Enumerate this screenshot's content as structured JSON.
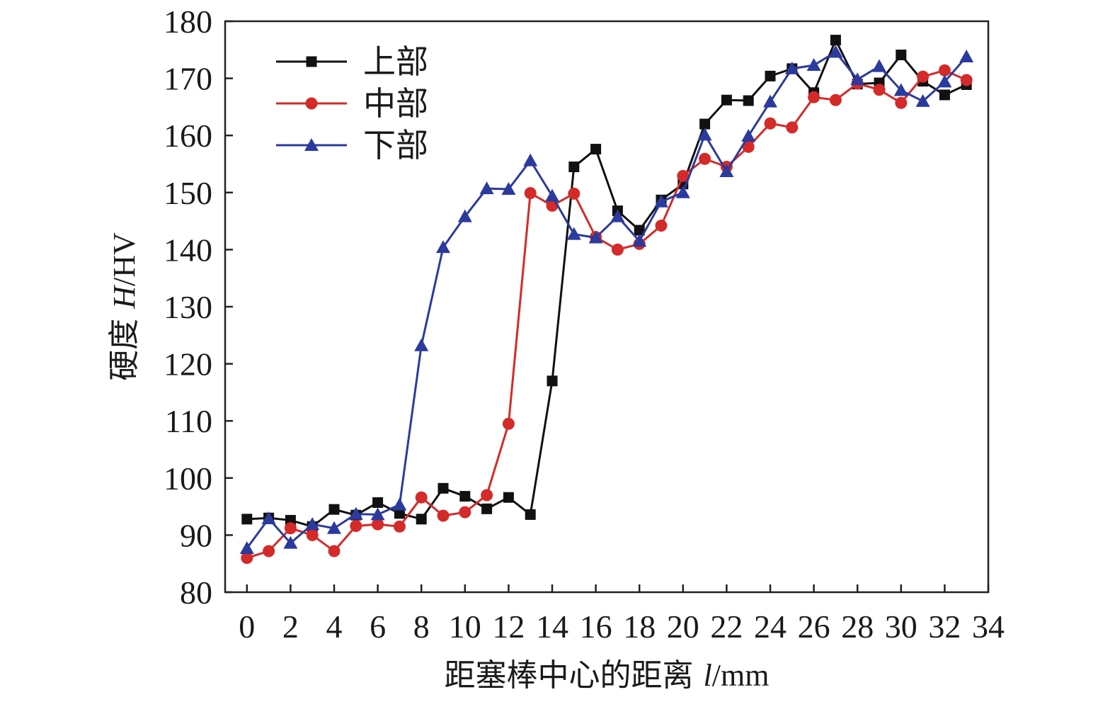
{
  "chart_data": {
    "type": "line",
    "title": "",
    "xlabel": {
      "prefix": "距塞棒中心的距离 ",
      "var": "l",
      "unit": "/mm"
    },
    "ylabel": {
      "prefix": "硬度 ",
      "var": "H",
      "unit": "/HV"
    },
    "xlim": [
      -1,
      34
    ],
    "ylim": [
      80,
      180
    ],
    "xticks": [
      "0",
      "2",
      "4",
      "6",
      "8",
      "10",
      "12",
      "14",
      "16",
      "18",
      "20",
      "22",
      "24",
      "26",
      "28",
      "30",
      "32",
      "34"
    ],
    "yticks": [
      "80",
      "90",
      "100",
      "110",
      "120",
      "130",
      "140",
      "150",
      "160",
      "170",
      "180"
    ],
    "x": [
      0,
      1,
      2,
      3,
      4,
      5,
      6,
      7,
      8,
      9,
      10,
      11,
      12,
      13,
      14,
      15,
      16,
      17,
      18,
      19,
      20,
      21,
      22,
      23,
      24,
      25,
      26,
      27,
      28,
      29,
      30,
      31,
      32,
      33
    ],
    "legend_position": "top-left",
    "grid": false,
    "series": [
      {
        "name": "上部",
        "color": "#111111",
        "marker": "square",
        "values": [
          92.8,
          93.0,
          92.6,
          91.5,
          94.5,
          93.5,
          95.7,
          93.8,
          92.8,
          98.2,
          96.8,
          94.6,
          96.6,
          93.6,
          117.0,
          154.5,
          157.6,
          146.8,
          143.4,
          148.7,
          151.5,
          162.0,
          166.2,
          166.1,
          170.4,
          171.7,
          167.5,
          176.7,
          169.0,
          169.2,
          174.1,
          169.5,
          167.1,
          168.9
        ]
      },
      {
        "name": "中部",
        "color": "#d42a2a",
        "marker": "circle",
        "values": [
          86.0,
          87.2,
          91.2,
          90.0,
          87.2,
          91.6,
          91.9,
          91.5,
          96.6,
          93.4,
          94.0,
          97.0,
          109.5,
          149.9,
          147.7,
          149.8,
          142.2,
          140.0,
          141.0,
          144.2,
          152.9,
          155.9,
          154.5,
          158.0,
          162.1,
          161.4,
          166.7,
          166.2,
          169.1,
          168.0,
          165.7,
          170.3,
          171.4,
          169.7
        ]
      },
      {
        "name": "下部",
        "color": "#2b3a9c",
        "marker": "triangle",
        "values": [
          87.7,
          92.9,
          88.6,
          91.9,
          91.2,
          93.7,
          93.6,
          95.3,
          123.2,
          140.4,
          145.8,
          150.7,
          150.6,
          155.6,
          149.4,
          142.7,
          142.1,
          145.8,
          141.5,
          148.4,
          150.0,
          160.1,
          153.7,
          159.9,
          165.9,
          171.7,
          172.3,
          174.6,
          169.8,
          172.1,
          167.9,
          166.0,
          169.4,
          173.8
        ]
      }
    ]
  }
}
